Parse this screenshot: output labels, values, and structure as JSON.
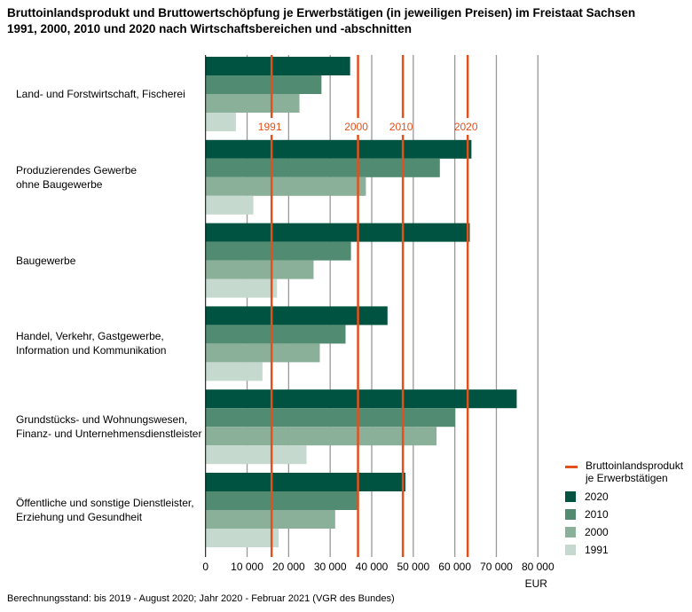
{
  "title_line1": "Bruttoinlandsprodukt und Bruttowertschöpfung je Erwerbstätigen (in jeweiligen Preisen) im Freistaat Sachsen",
  "title_line2": "1991, 2000, 2010 und 2020 nach Wirtschaftsbereichen und -abschnitten",
  "footnote": "Berechnungsstand: bis 2019 - August 2020; Jahr 2020 - Februar 2021 (VGR des Bundes)",
  "chart_data": {
    "type": "bar",
    "orientation": "horizontal",
    "categories": [
      [
        "Land- und Forstwirtschaft, Fischerei"
      ],
      [
        "Produzierendes Gewerbe",
        "ohne Baugewerbe"
      ],
      [
        "Baugewerbe"
      ],
      [
        "Handel, Verkehr, Gastgewerbe,",
        "Information und Kommunikation"
      ],
      [
        "Grundstücks- und Wohnungswesen,",
        "Finanz- und Unternehmensdienstleister"
      ],
      [
        "Öffentliche und sonstige Dienstleister,",
        "Erziehung und Gesundheit"
      ]
    ],
    "series": [
      {
        "name": "2020",
        "color": "#005340",
        "values": [
          34800,
          64000,
          63600,
          43800,
          74900,
          48100
        ]
      },
      {
        "name": "2010",
        "color": "#518b72",
        "values": [
          27900,
          56400,
          35000,
          33700,
          60100,
          36700
        ]
      },
      {
        "name": "2000",
        "color": "#8bb09a",
        "values": [
          22600,
          38600,
          26000,
          27500,
          55600,
          31200
        ]
      },
      {
        "name": "1991",
        "color": "#c5d9ce",
        "values": [
          7300,
          11500,
          17200,
          13700,
          24300,
          17600
        ]
      }
    ],
    "reference_lines": {
      "name": "Bruttoinlandsprodukt je Erwerbstätigen",
      "name_lines": [
        "Bruttoinlandsprodukt",
        "je Erwerbstätigen"
      ],
      "color": "#e2501c",
      "items": [
        {
          "label": "1991",
          "value": 15900
        },
        {
          "label": "2000",
          "value": 36700
        },
        {
          "label": "2010",
          "value": 47500
        },
        {
          "label": "2020",
          "value": 63100
        }
      ]
    },
    "xlim": [
      0,
      80000
    ],
    "xticks": [
      "0",
      "10 000",
      "20 000",
      "30 000",
      "40 000",
      "50 000",
      "60 000",
      "70 000",
      "80 000"
    ],
    "xlabel": "EUR",
    "grid": true,
    "legend_position": "bottom-right"
  }
}
